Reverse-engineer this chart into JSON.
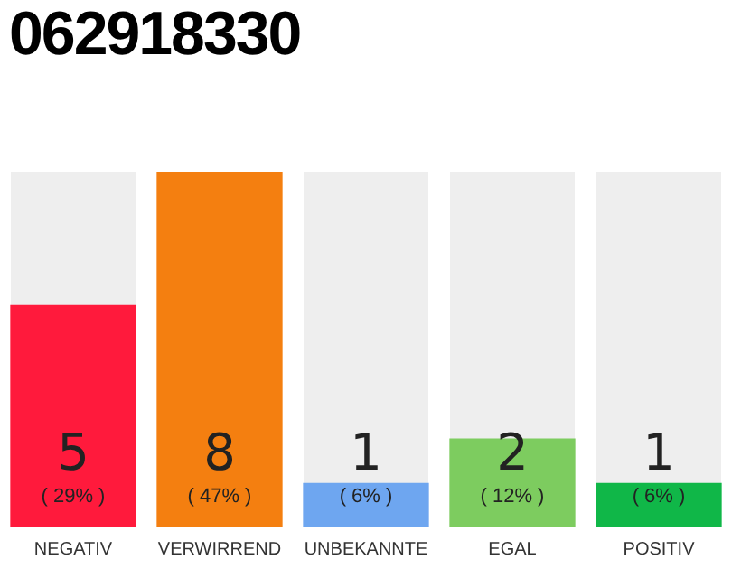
{
  "chart_data": {
    "type": "bar",
    "title": "062918330",
    "categories": [
      "NEGATIV",
      "VERWIRREND",
      "UNBEKANNTE",
      "EGAL",
      "POSITIV"
    ],
    "values": [
      5,
      8,
      1,
      2,
      1
    ],
    "colors": [
      "#ff1a3c",
      "#f47f10",
      "#6ea6f0",
      "#7dcc5f",
      "#10b748"
    ],
    "value_labels": [
      "5\n( 29% )",
      "8\n( 47% )",
      "1\n( 6% )",
      "2\n( 12% )",
      "1\n( 6% )"
    ],
    "grid": false,
    "legend": false
  }
}
